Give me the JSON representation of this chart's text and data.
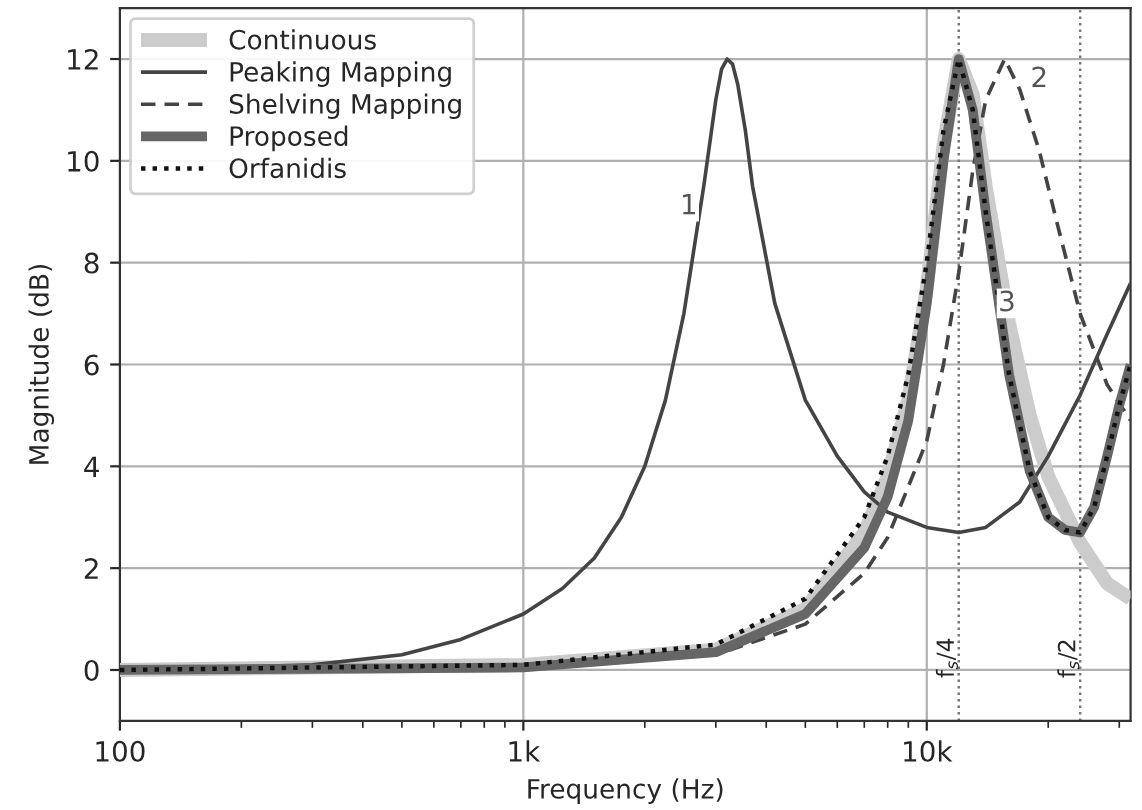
{
  "chart_data": {
    "type": "line",
    "xlabel": "Frequency (Hz)",
    "ylabel": "Magnitude (dB)",
    "log": "x",
    "xlim": [
      100,
      32000
    ],
    "ylim": [
      -1,
      13
    ],
    "xticks": [
      {
        "value": 100,
        "label": "100"
      },
      {
        "value": 1000,
        "label": "1k"
      },
      {
        "value": 10000,
        "label": "10k"
      }
    ],
    "yticks": [
      0,
      2,
      4,
      6,
      8,
      10,
      12
    ],
    "grid": true,
    "legend": "top left",
    "series": [
      {
        "name": "Continuous",
        "color": "#cccccc",
        "line_style": "solid",
        "x": [
          100,
          1000,
          3000,
          5000,
          7000,
          8000,
          9000,
          10000,
          11000,
          12000,
          13000,
          14000,
          16000,
          18000,
          20000,
          24000,
          28000,
          32000
        ],
        "values": [
          0,
          0.1,
          0.4,
          1.2,
          2.7,
          3.8,
          5.3,
          7.5,
          10.3,
          12,
          11.3,
          9.5,
          6.8,
          5,
          3.8,
          2.5,
          1.7,
          1.4
        ]
      },
      {
        "name": "Peaking Mapping",
        "color": "#444444",
        "line_style": "solid",
        "x": [
          100,
          300,
          500,
          700,
          1000,
          1250,
          1500,
          1750,
          2000,
          2250,
          2500,
          2800,
          3000,
          3100,
          3200,
          3300,
          3400,
          3550,
          3700,
          4200,
          5000,
          6000,
          7000,
          8000,
          10000,
          12000,
          14000,
          17000,
          20000,
          24000,
          28000,
          32000
        ],
        "values": [
          0,
          0.1,
          0.3,
          0.6,
          1.1,
          1.6,
          2.2,
          3,
          4,
          5.3,
          7,
          9.5,
          11.2,
          11.8,
          12,
          11.9,
          11.5,
          10.6,
          9.5,
          7.2,
          5.3,
          4.2,
          3.5,
          3.1,
          2.8,
          2.7,
          2.8,
          3.3,
          4.2,
          5.4,
          6.6,
          7.6
        ]
      },
      {
        "name": "Shelving Mapping",
        "color": "#444444",
        "line_style": "dashed",
        "x": [
          100,
          1000,
          3000,
          5000,
          7000,
          8000,
          10000,
          11000,
          12000,
          13000,
          14000,
          15600,
          17000,
          19000,
          21000,
          24000,
          28000,
          32000
        ],
        "values": [
          0,
          0.05,
          0.3,
          0.9,
          1.9,
          2.6,
          4.5,
          6,
          7.8,
          9.8,
          11.2,
          12,
          11.4,
          10.2,
          8.8,
          7,
          5.6,
          4.9
        ]
      },
      {
        "name": "Proposed",
        "color": "#666666",
        "line_style": "solid",
        "x": [
          100,
          1000,
          3000,
          5000,
          7000,
          8000,
          9000,
          10000,
          11000,
          12000,
          13000,
          14000,
          16000,
          18000,
          20000,
          22000,
          24000,
          26000,
          28000,
          30000,
          32000
        ],
        "values": [
          0,
          0.05,
          0.35,
          1.1,
          2.4,
          3.4,
          4.9,
          7.2,
          10,
          12,
          11,
          9,
          5.8,
          3.9,
          3,
          2.75,
          2.7,
          3.2,
          4.2,
          5.2,
          6
        ]
      },
      {
        "name": "Orfanidis",
        "color": "#111111",
        "line_style": "dotted",
        "x": [
          100,
          1000,
          3000,
          5000,
          7000,
          8000,
          9000,
          10000,
          11000,
          12000,
          13000,
          14000,
          16000,
          18000,
          20000,
          22000,
          24000,
          26000,
          28000,
          30000,
          32000
        ],
        "values": [
          0,
          0.1,
          0.5,
          1.4,
          3,
          4.2,
          5.8,
          8,
          10.6,
          12,
          11,
          9,
          5.8,
          3.9,
          3,
          2.75,
          2.7,
          3.2,
          4.2,
          5.2,
          6
        ]
      }
    ],
    "ref_lines": [
      {
        "axis": "x",
        "value": 12000,
        "label": "f$_{s}$/4",
        "color": "#777777",
        "line_style": "dotted"
      },
      {
        "axis": "x",
        "value": 24000,
        "label": "f$_{s}$/2",
        "color": "#777777",
        "line_style": "dotted"
      }
    ],
    "annotations": [
      {
        "text": "1",
        "x": 2570,
        "y": 9.1
      },
      {
        "text": "2",
        "x": 19000,
        "y": 11.6
      },
      {
        "text": "3",
        "x": 15800,
        "y": 7.2
      }
    ]
  }
}
